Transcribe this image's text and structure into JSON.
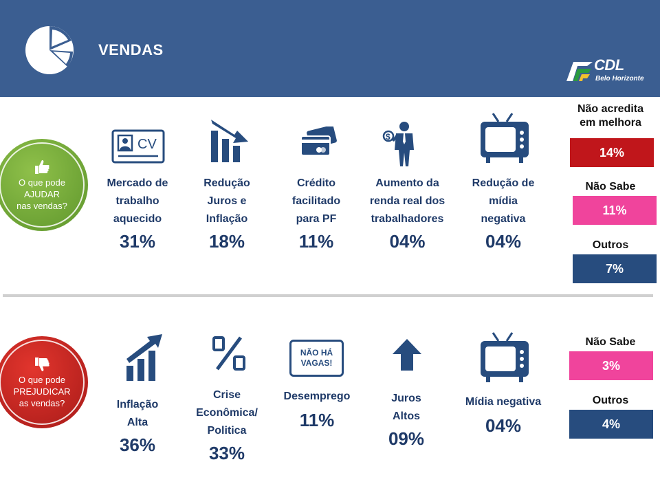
{
  "header": {
    "title": "VENDAS",
    "logo_main": "CDL",
    "logo_sub": "Belo Horizonte",
    "bg_color": "#3b5e91"
  },
  "help": {
    "circle_text": [
      "O que pode",
      "AJUDAR",
      "nas vendas?"
    ],
    "circle_icon": "thumbs-up-icon",
    "items": [
      {
        "label": [
          "Mercado de",
          "trabalho",
          "aquecido"
        ],
        "value": "31%",
        "icon": "cv-card-icon"
      },
      {
        "label": [
          "Redução",
          "Juros e",
          "Inflação"
        ],
        "value": "18%",
        "icon": "falling-bars-icon"
      },
      {
        "label": [
          "Crédito",
          "facilitado",
          "para PF"
        ],
        "value": "11%",
        "icon": "credit-card-icon"
      },
      {
        "label": [
          "Aumento da",
          "renda real dos",
          "trabalhadores"
        ],
        "value": "04%",
        "icon": "worker-money-icon"
      },
      {
        "label": [
          "Redução de",
          "mídia",
          "negativa"
        ],
        "value": "04%",
        "icon": "tv-icon"
      }
    ],
    "side": [
      {
        "label": [
          "Não acredita",
          "em melhora"
        ],
        "value": "14%",
        "color": "#c0161b"
      },
      {
        "label": [
          "Não Sabe"
        ],
        "value": "11%",
        "color": "#f0449c"
      },
      {
        "label": [
          "Outros"
        ],
        "value": "7%",
        "color": "#274c7e"
      }
    ]
  },
  "hurt": {
    "circle_text": [
      "O que pode",
      "PREJUDICAR",
      "as vendas?"
    ],
    "circle_icon": "thumbs-down-icon",
    "items": [
      {
        "label": [
          "Inflação",
          "Alta"
        ],
        "value": "36%",
        "icon": "rising-bars-icon"
      },
      {
        "label": [
          "Crise",
          "Econômica/",
          "Politica"
        ],
        "value": "33%",
        "icon": "percent-icon"
      },
      {
        "label": [
          "Desemprego"
        ],
        "value": "11%",
        "icon": "no-vacancies-sign-icon",
        "sign_text": [
          "NÃO HÁ",
          "VAGAS!"
        ]
      },
      {
        "label": [
          "Juros",
          "Altos"
        ],
        "value": "09%",
        "icon": "up-arrow-icon"
      },
      {
        "label": [
          "Mídia negativa"
        ],
        "value": "04%",
        "icon": "tv-icon"
      }
    ],
    "side": [
      {
        "label": [
          "Não Sabe"
        ],
        "value": "3%",
        "color": "#f0449c"
      },
      {
        "label": [
          "Outros"
        ],
        "value": "4%",
        "color": "#274c7e"
      }
    ]
  }
}
